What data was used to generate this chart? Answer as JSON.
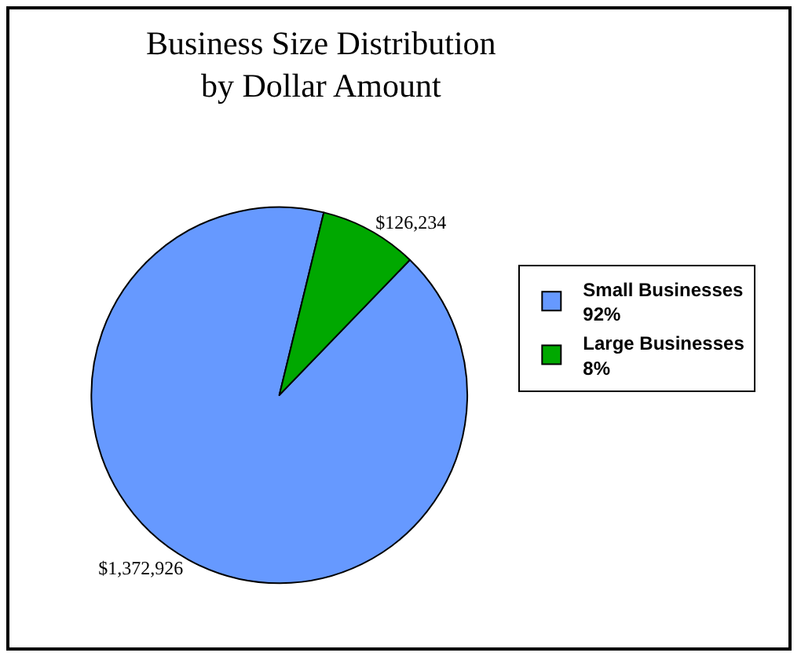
{
  "chart_data": {
    "type": "pie",
    "title": "Business Size Distribution\nby Dollar Amount",
    "categories": [
      "Small Businesses\n92%",
      "Large Businesses\n8%"
    ],
    "values": [
      1372926,
      126234
    ],
    "value_labels": [
      "$1,372,926",
      "$126,234"
    ],
    "colors": [
      "#6699ff",
      "#00a800"
    ],
    "legend": "right"
  }
}
